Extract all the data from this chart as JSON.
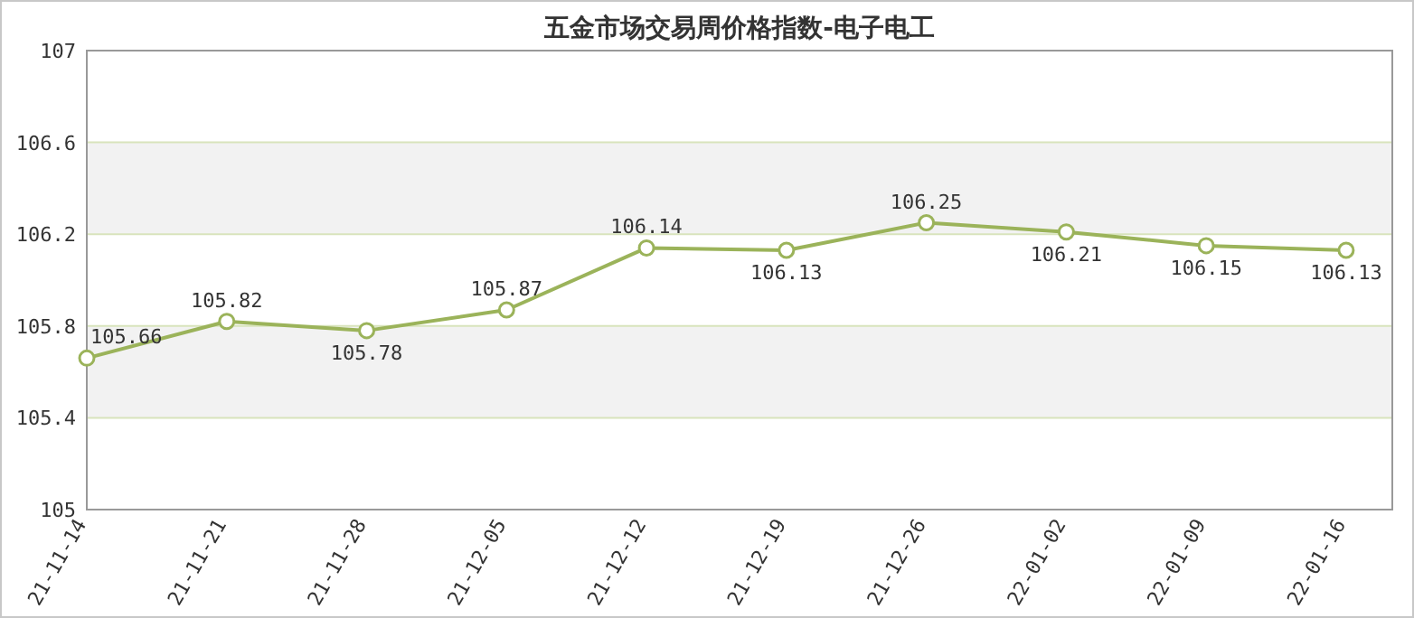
{
  "chart_data": {
    "type": "line",
    "title": "五金市场交易周价格指数-电子电工",
    "categories": [
      "21-11-14",
      "21-11-21",
      "21-11-28",
      "21-12-05",
      "21-12-12",
      "21-12-19",
      "21-12-26",
      "22-01-02",
      "22-01-09",
      "22-01-16"
    ],
    "series": [
      {
        "color": "#9bb35a",
        "values": [
          105.66,
          105.82,
          105.78,
          105.87,
          106.14,
          106.13,
          106.25,
          106.21,
          106.15,
          106.13
        ]
      }
    ],
    "ylim": [
      105,
      107
    ],
    "yticks": [
      105,
      105.4,
      105.8,
      106.2,
      106.6,
      107
    ],
    "bands": [
      {
        "axis": "y",
        "from": 105.4,
        "to": 105.8,
        "color": "#f2f2f2"
      },
      {
        "axis": "y",
        "from": 106.2,
        "to": 106.6,
        "color": "#f2f2f2"
      }
    ],
    "grid": "y",
    "marker": "circle",
    "line_style": "solid",
    "data_labels": true
  }
}
